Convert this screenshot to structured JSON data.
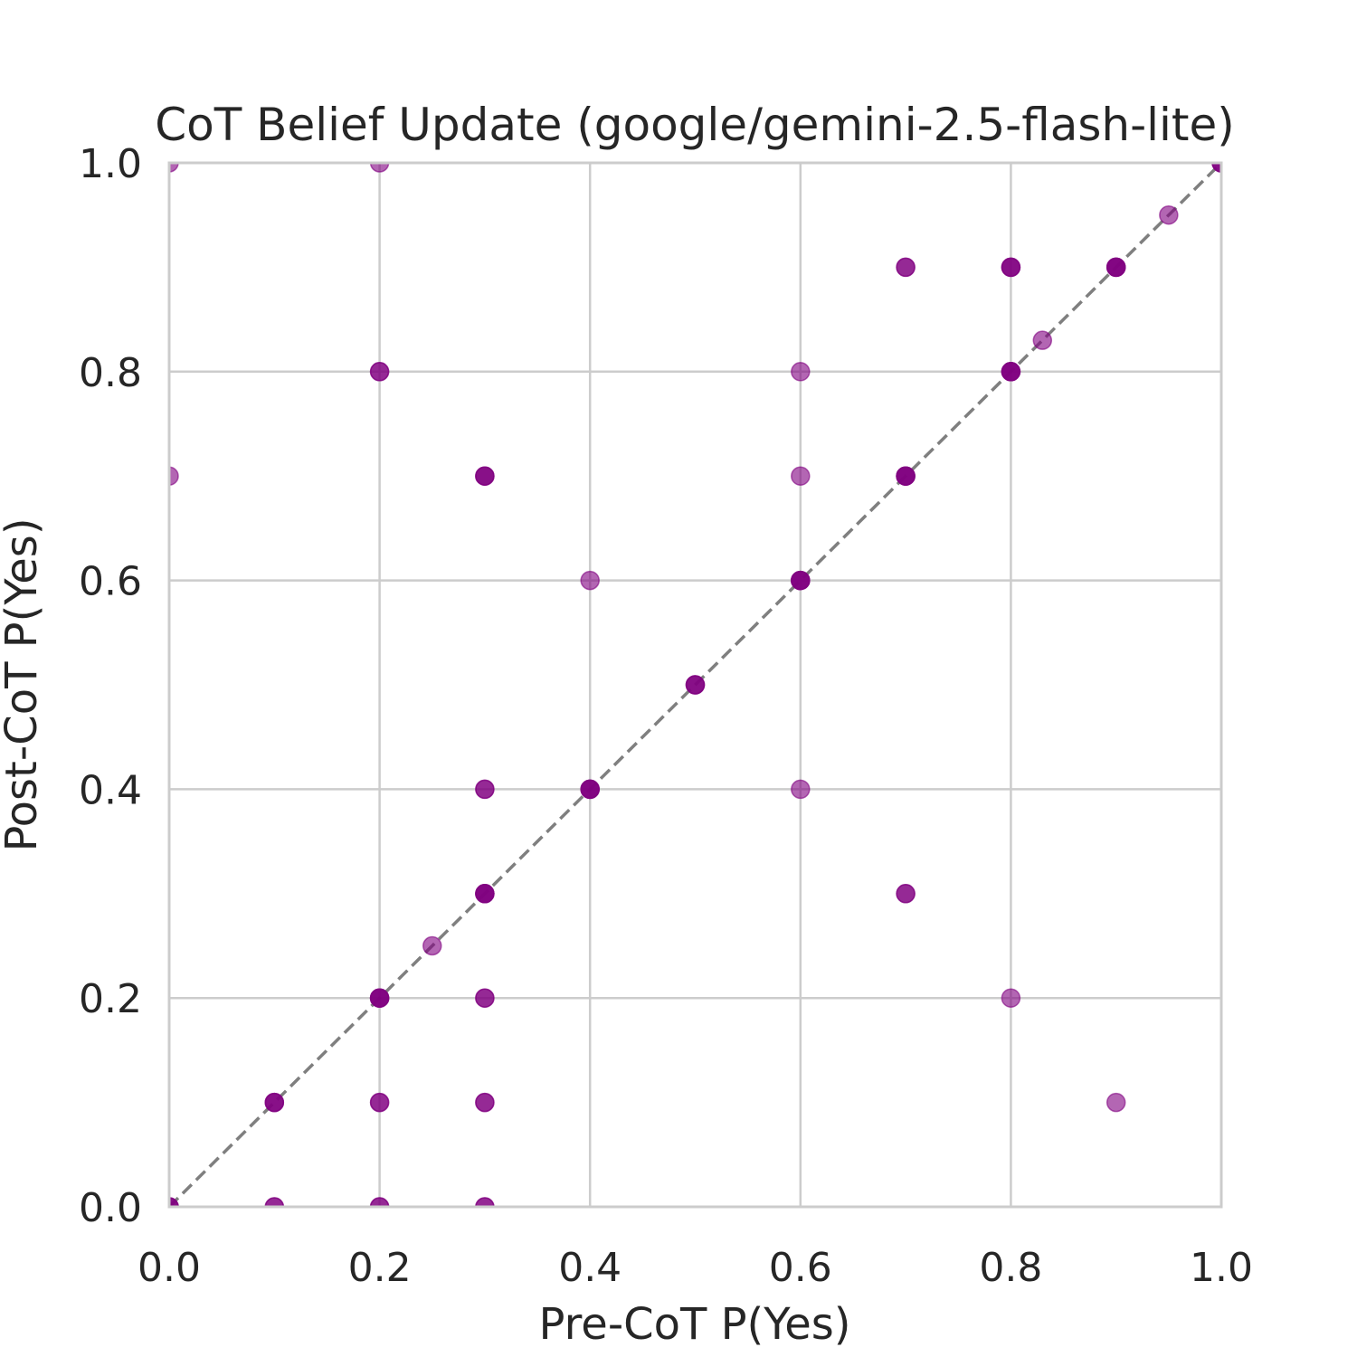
{
  "chart_data": {
    "type": "scatter",
    "title": "CoT Belief Update (google/gemini-2.5-flash-lite)",
    "xlabel": "Pre-CoT P(Yes)",
    "ylabel": "Post-CoT P(Yes)",
    "xlim": [
      0,
      1
    ],
    "ylim": [
      0,
      1
    ],
    "xticks": [
      "0.0",
      "0.2",
      "0.4",
      "0.6",
      "0.8",
      "1.0"
    ],
    "yticks": [
      "0.0",
      "0.2",
      "0.4",
      "0.6",
      "0.8",
      "1.0"
    ],
    "grid": true,
    "reference_line": "y = x (dashed)",
    "marker_color": "#800080",
    "reference_color": "#808080",
    "series": [
      {
        "name": "responses",
        "points": [
          {
            "x": 0.0,
            "y": 1.0,
            "n": 1
          },
          {
            "x": 0.2,
            "y": 1.0,
            "n": 1
          },
          {
            "x": 1.0,
            "y": 1.0,
            "n": 3
          },
          {
            "x": 0.95,
            "y": 0.95,
            "n": 1
          },
          {
            "x": 0.7,
            "y": 0.9,
            "n": 2
          },
          {
            "x": 0.8,
            "y": 0.9,
            "n": 3
          },
          {
            "x": 0.9,
            "y": 0.9,
            "n": 4
          },
          {
            "x": 0.83,
            "y": 0.83,
            "n": 1
          },
          {
            "x": 0.2,
            "y": 0.8,
            "n": 2
          },
          {
            "x": 0.6,
            "y": 0.8,
            "n": 1
          },
          {
            "x": 0.8,
            "y": 0.8,
            "n": 4
          },
          {
            "x": 0.0,
            "y": 0.7,
            "n": 1
          },
          {
            "x": 0.3,
            "y": 0.7,
            "n": 3
          },
          {
            "x": 0.6,
            "y": 0.7,
            "n": 1
          },
          {
            "x": 0.7,
            "y": 0.7,
            "n": 4
          },
          {
            "x": 0.4,
            "y": 0.6,
            "n": 1
          },
          {
            "x": 0.6,
            "y": 0.6,
            "n": 4
          },
          {
            "x": 0.5,
            "y": 0.5,
            "n": 3
          },
          {
            "x": 0.3,
            "y": 0.4,
            "n": 2
          },
          {
            "x": 0.4,
            "y": 0.4,
            "n": 4
          },
          {
            "x": 0.6,
            "y": 0.4,
            "n": 1
          },
          {
            "x": 0.3,
            "y": 0.3,
            "n": 4
          },
          {
            "x": 0.7,
            "y": 0.3,
            "n": 2
          },
          {
            "x": 0.25,
            "y": 0.25,
            "n": 1
          },
          {
            "x": 0.2,
            "y": 0.2,
            "n": 4
          },
          {
            "x": 0.3,
            "y": 0.2,
            "n": 2
          },
          {
            "x": 0.8,
            "y": 0.2,
            "n": 1
          },
          {
            "x": 0.1,
            "y": 0.1,
            "n": 3
          },
          {
            "x": 0.2,
            "y": 0.1,
            "n": 2
          },
          {
            "x": 0.3,
            "y": 0.1,
            "n": 2
          },
          {
            "x": 0.9,
            "y": 0.1,
            "n": 1
          },
          {
            "x": 0.0,
            "y": 0.0,
            "n": 3
          },
          {
            "x": 0.1,
            "y": 0.0,
            "n": 2
          },
          {
            "x": 0.2,
            "y": 0.0,
            "n": 2
          },
          {
            "x": 0.3,
            "y": 0.0,
            "n": 2
          }
        ]
      }
    ]
  }
}
